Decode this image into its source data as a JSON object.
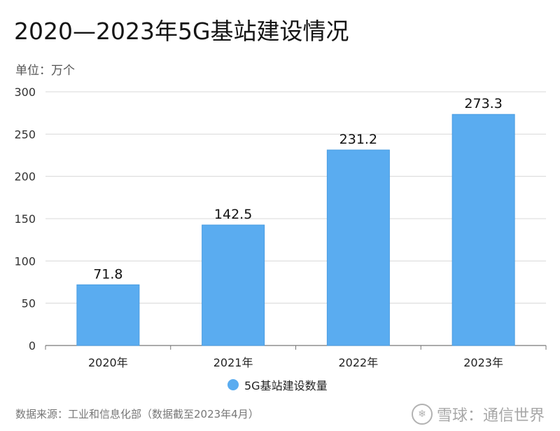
{
  "title": "2020—2023年5G基站建设情况",
  "unit_label": "单位：万个",
  "legend_label": "5G基站建设数量",
  "source_note": "数据来源：工业和信息化部（数据截至2023年4月）",
  "watermark_text": "雪球：通信世界",
  "colors": {
    "bar": "#5aacf0",
    "grid": "#d8d8d8",
    "axis": "#777777"
  },
  "chart_data": {
    "type": "bar",
    "title": "2020—2023年5G基站建设情况",
    "categories": [
      "2020年",
      "2021年",
      "2022年",
      "2023年"
    ],
    "series": [
      {
        "name": "5G基站建设数量",
        "values": [
          71.8,
          142.5,
          231.2,
          273.3
        ]
      }
    ],
    "ylim": [
      0,
      300
    ],
    "yticks": [
      0,
      50,
      100,
      150,
      200,
      250,
      300
    ],
    "grid": true,
    "legend": "bottom",
    "data_labels": [
      "71.8",
      "142.5",
      "231.2",
      "273.3"
    ]
  }
}
